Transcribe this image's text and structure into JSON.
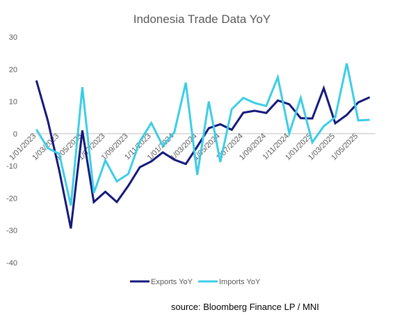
{
  "title": "Indonesia Trade Data YoY",
  "source": "source: Bloomberg Finance LP / MNI",
  "colors": {
    "exports": "#14197a",
    "imports": "#3ccde6",
    "axis": "#bfbfbf",
    "text": "#595959"
  },
  "chart_data": {
    "type": "line",
    "title": "Indonesia Trade Data YoY",
    "xlabel": "",
    "ylabel": "",
    "ylim": [
      -40,
      30
    ],
    "yticks": [
      30,
      20,
      10,
      0,
      -10,
      -20,
      -30,
      -40
    ],
    "grid": false,
    "legend": "bottom",
    "x": [
      "1/01/2023",
      "1/02/2023",
      "1/03/2023",
      "1/04/2023",
      "1/05/2023",
      "1/06/2023",
      "1/07/2023",
      "1/08/2023",
      "1/09/2023",
      "1/10/2023",
      "1/11/2023",
      "1/12/2023",
      "1/01/2024",
      "1/02/2024",
      "1/03/2024",
      "1/04/2024",
      "1/05/2024",
      "1/06/2024",
      "1/07/2024",
      "1/08/2024",
      "1/09/2024",
      "1/10/2024",
      "1/11/2024",
      "1/12/2024",
      "1/01/2025",
      "1/02/2025",
      "1/03/2025",
      "1/04/2025",
      "1/05/2025",
      "1/06/2025"
    ],
    "x_tick_labels": [
      "1/01/2023",
      "1/03/2023",
      "1/05/2023",
      "1/07/2023",
      "1/09/2023",
      "1/11/2023",
      "1/01/2024",
      "1/03/2024",
      "1/05/2024",
      "1/07/2024",
      "1/09/2024",
      "1/11/2024",
      "1/01/2025",
      "1/03/2025",
      "1/05/2025"
    ],
    "series": [
      {
        "name": "Exports YoY",
        "color": "#14197a",
        "values": [
          16.5,
          4.0,
          -11.5,
          -29.4,
          1.0,
          -21.2,
          -18.0,
          -21.2,
          -16.2,
          -10.4,
          -8.6,
          -5.8,
          -8.1,
          -9.4,
          -4.0,
          1.7,
          2.9,
          1.2,
          6.5,
          7.1,
          6.4,
          10.3,
          9.1,
          4.8,
          4.7,
          14.1,
          3.2,
          5.8,
          9.7,
          11.3
        ]
      },
      {
        "name": "Imports YoY",
        "color": "#3ccde6",
        "values": [
          1.3,
          -4.5,
          -6.3,
          -22.3,
          14.4,
          -18.4,
          -8.3,
          -14.8,
          -12.5,
          -2.4,
          3.3,
          -3.8,
          0.4,
          15.8,
          -12.8,
          10.0,
          -8.8,
          7.6,
          11.1,
          9.5,
          8.6,
          17.5,
          0.1,
          11.1,
          -2.7,
          2.3,
          5.1,
          21.8,
          4.1,
          4.3
        ]
      }
    ]
  }
}
